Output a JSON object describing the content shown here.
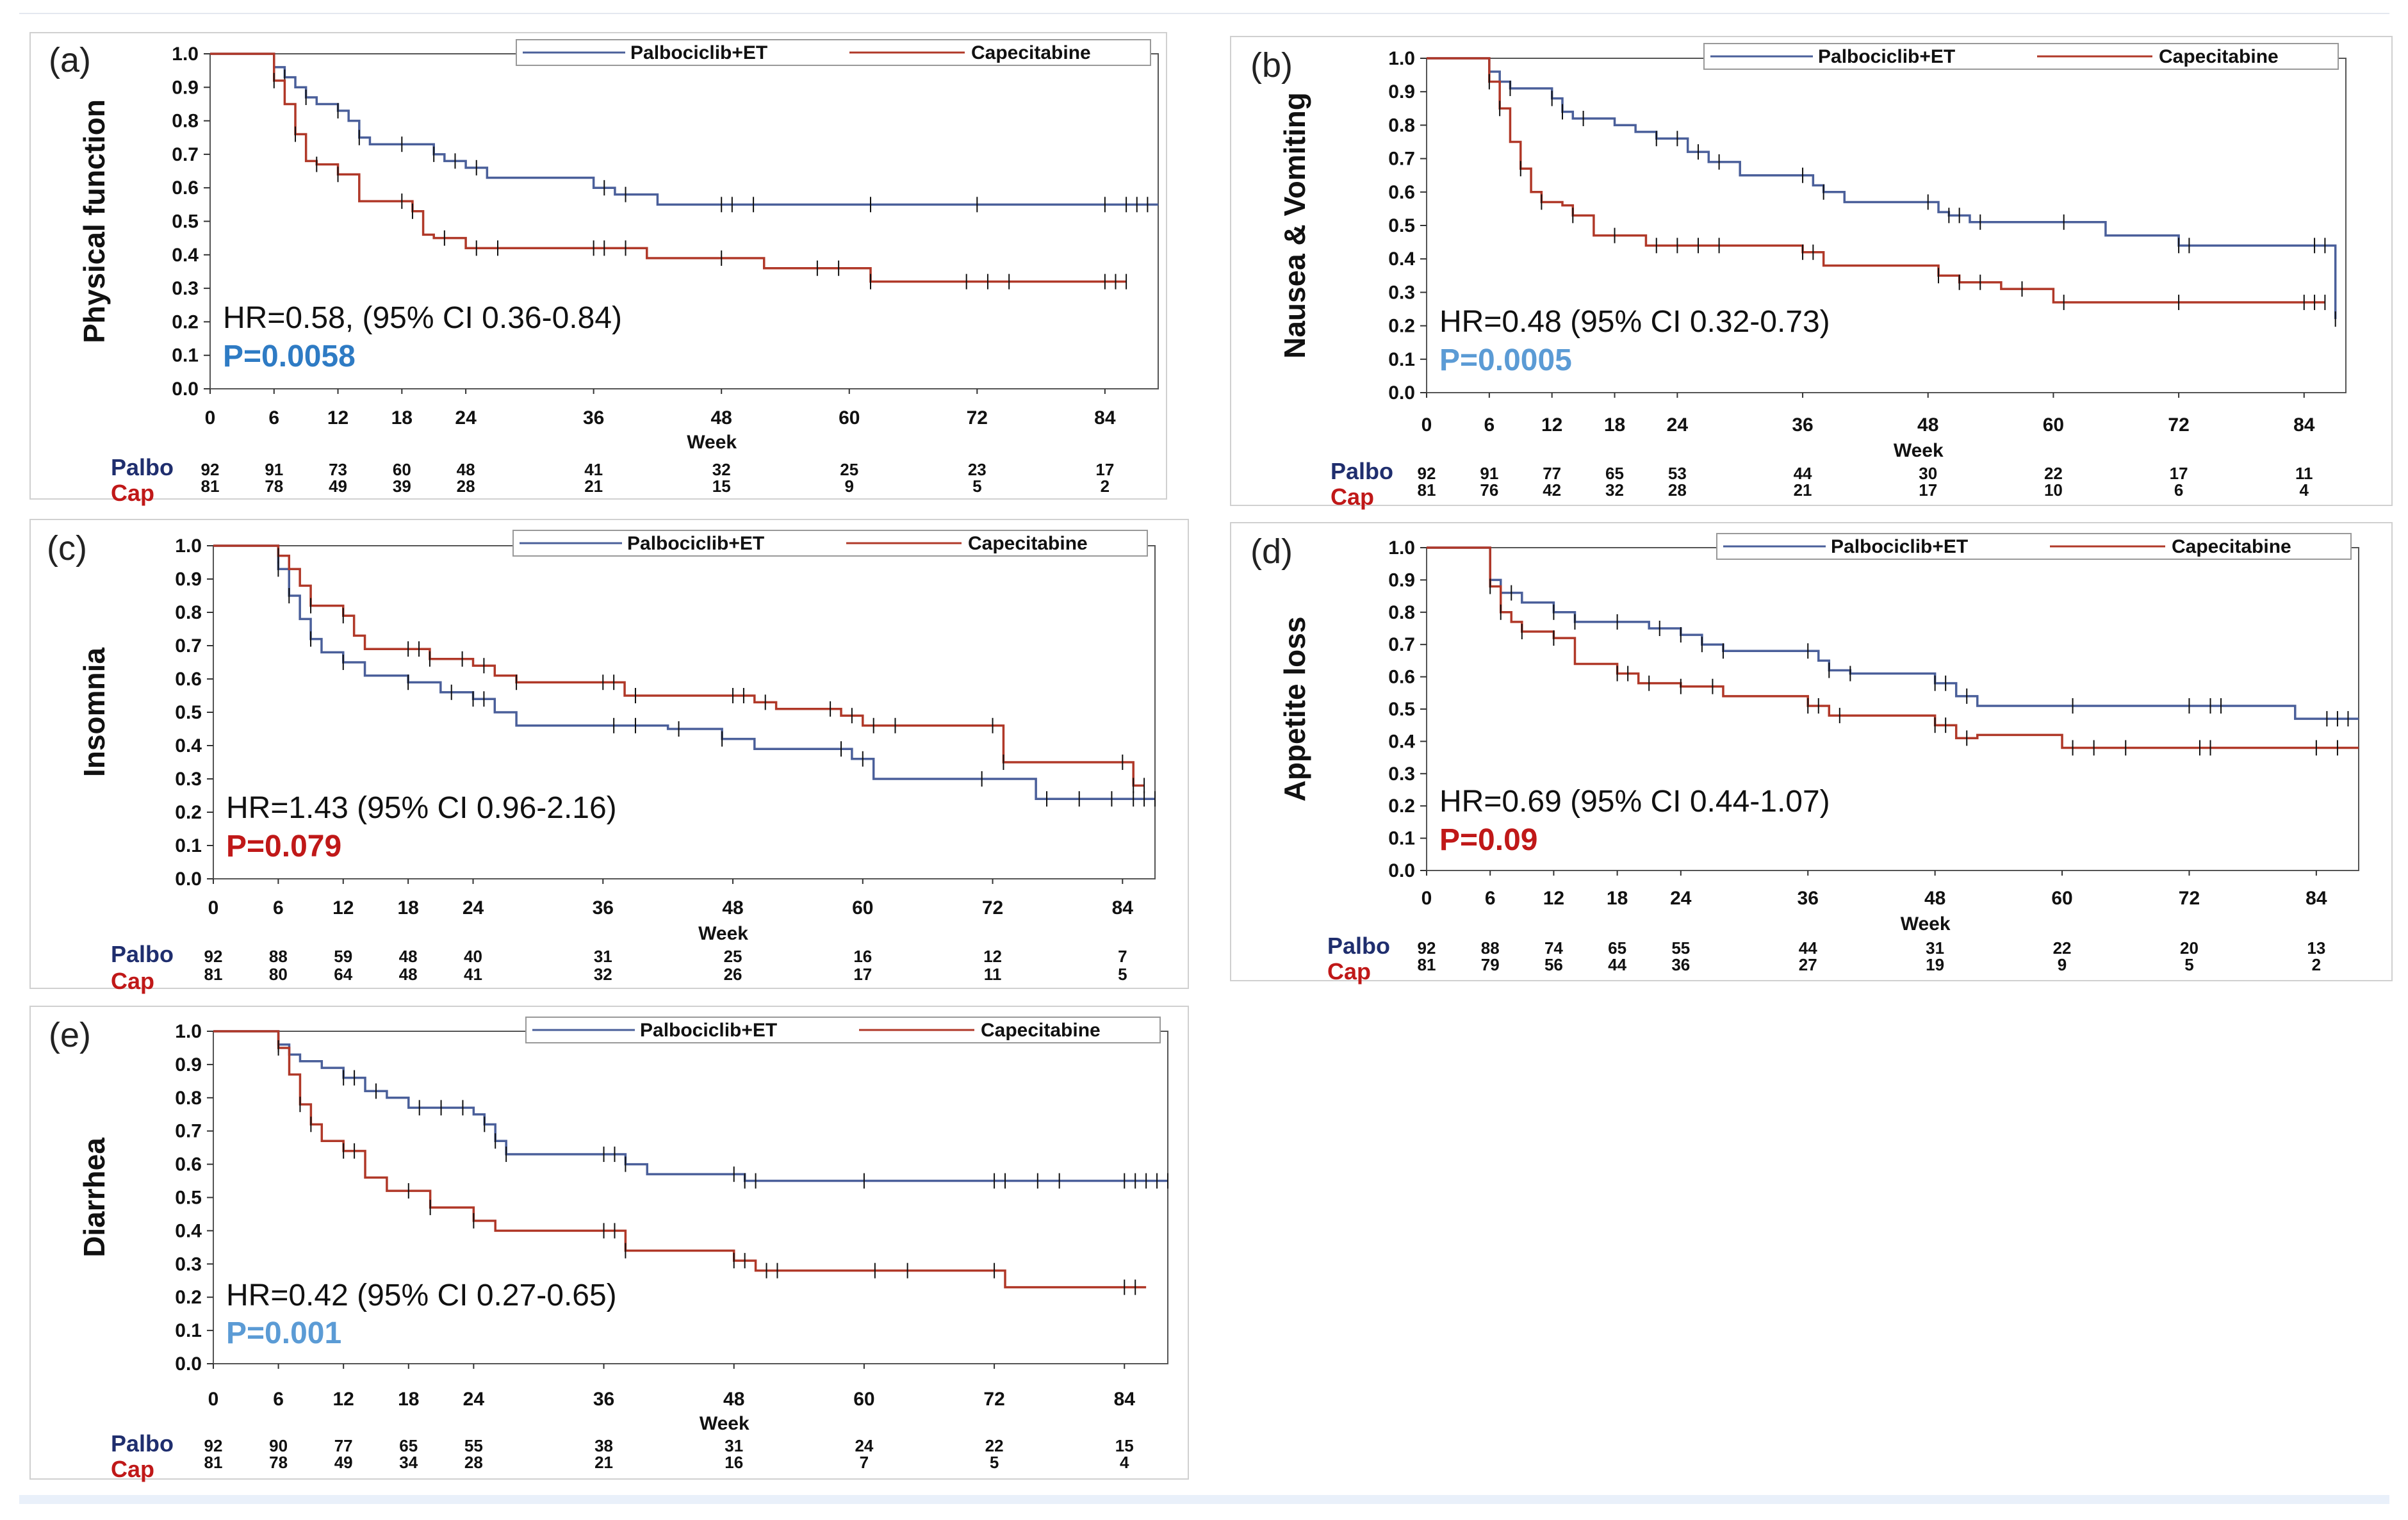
{
  "figure": {
    "x_label": "Week",
    "colors": {
      "palbo": "#4a5f9a",
      "cap": "#b03828",
      "palbo_label": "#1f2e6e",
      "cap_label": "#c01818",
      "p_blue": "#2e7bc4",
      "p_lightblue": "#5b9bd5",
      "p_red": "#c01818"
    }
  },
  "chart_data": [
    {
      "id": "a",
      "type": "line",
      "panel_label": "(a)",
      "ylabel": "Physical function",
      "legend": [
        "Palbociclib+ET",
        "Capecitabine"
      ],
      "x_ticks": [
        "0",
        "6",
        "12",
        "18",
        "24",
        "36",
        "48",
        "60",
        "72",
        "84"
      ],
      "y_ticks": [
        "1.0",
        "0.9",
        "0.8",
        "0.7",
        "0.6",
        "0.5",
        "0.4",
        "0.3",
        "0.2",
        "0.1",
        "0.0"
      ],
      "xlim": [
        0,
        89
      ],
      "ylim": [
        0,
        1
      ],
      "hr_text": "HR=0.58,  (95% CI 0.36-0.84)",
      "p_text": "P=0.0058",
      "p_color": "#2e7bc4",
      "risk_labels": [
        "Palbo",
        "Cap"
      ],
      "risk_weeks": [
        0,
        6,
        12,
        18,
        24,
        36,
        48,
        60,
        72,
        84
      ],
      "risk_palbo": [
        "92",
        "91",
        "73",
        "60",
        "48",
        "41",
        "32",
        "25",
        "23",
        "17"
      ],
      "risk_cap": [
        "81",
        "78",
        "49",
        "39",
        "28",
        "21",
        "15",
        "9",
        "5",
        "2"
      ],
      "series": [
        {
          "name": "Palbociclib+ET",
          "x": [
            0,
            6,
            7,
            8,
            9,
            10,
            12,
            13,
            14,
            15,
            18,
            21,
            22,
            24,
            26,
            36,
            38,
            42,
            48,
            60,
            72,
            80,
            89
          ],
          "y": [
            1.0,
            0.96,
            0.93,
            0.9,
            0.87,
            0.85,
            0.83,
            0.8,
            0.75,
            0.73,
            0.73,
            0.7,
            0.68,
            0.66,
            0.63,
            0.6,
            0.58,
            0.55,
            0.55,
            0.55,
            0.55,
            0.55,
            0.55
          ],
          "censor_x": [
            6,
            7,
            9,
            12,
            14,
            18,
            21,
            23,
            25,
            37,
            39,
            48,
            49,
            51,
            62,
            72,
            84,
            86,
            87,
            88
          ]
        },
        {
          "name": "Capecitabine",
          "x": [
            0,
            6,
            7,
            8,
            9,
            10,
            12,
            14,
            19,
            20,
            21,
            24,
            26,
            36,
            41,
            48,
            52,
            58,
            62,
            72,
            86
          ],
          "y": [
            1.0,
            0.92,
            0.85,
            0.76,
            0.68,
            0.67,
            0.64,
            0.56,
            0.53,
            0.46,
            0.45,
            0.42,
            0.42,
            0.42,
            0.39,
            0.39,
            0.36,
            0.36,
            0.32,
            0.32,
            0.32
          ],
          "censor_x": [
            6,
            8,
            10,
            12,
            18,
            19,
            22,
            25,
            27,
            36,
            37,
            39,
            48,
            57,
            59,
            62,
            71,
            73,
            75,
            84,
            85,
            86
          ]
        }
      ]
    },
    {
      "id": "b",
      "type": "line",
      "panel_label": "(b)",
      "ylabel": "Nausea & Vomiting",
      "legend": [
        "Palbociclib+ET",
        "Capecitabine"
      ],
      "x_ticks": [
        "0",
        "6",
        "12",
        "18",
        "24",
        "36",
        "48",
        "60",
        "72",
        "84"
      ],
      "y_ticks": [
        "1.0",
        "0.9",
        "0.8",
        "0.7",
        "0.6",
        "0.5",
        "0.4",
        "0.3",
        "0.2",
        "0.1",
        "0.0"
      ],
      "xlim": [
        0,
        88
      ],
      "ylim": [
        0,
        1
      ],
      "hr_text": "HR=0.48  (95% CI 0.32-0.73)",
      "p_text": "P=0.0005",
      "p_color": "#5b9bd5",
      "risk_labels": [
        "Palbo",
        "Cap"
      ],
      "risk_weeks": [
        0,
        6,
        12,
        18,
        24,
        36,
        48,
        60,
        72,
        84
      ],
      "risk_palbo": [
        "92",
        "91",
        "77",
        "65",
        "53",
        "44",
        "30",
        "22",
        "17",
        "11"
      ],
      "risk_cap": [
        "81",
        "76",
        "42",
        "32",
        "28",
        "21",
        "17",
        "10",
        "6",
        "4"
      ],
      "series": [
        {
          "name": "Palbociclib+ET",
          "x": [
            0,
            6,
            7,
            8,
            9,
            12,
            13,
            14,
            18,
            20,
            22,
            25,
            27,
            30,
            36,
            37,
            38,
            40,
            48,
            49,
            50,
            52,
            60,
            65,
            72,
            86,
            87
          ],
          "y": [
            1.0,
            0.96,
            0.93,
            0.91,
            0.91,
            0.88,
            0.84,
            0.82,
            0.8,
            0.78,
            0.76,
            0.72,
            0.69,
            0.65,
            0.65,
            0.62,
            0.6,
            0.57,
            0.57,
            0.54,
            0.53,
            0.51,
            0.51,
            0.47,
            0.44,
            0.44,
            0.22
          ],
          "censor_x": [
            6,
            8,
            12,
            13,
            15,
            22,
            24,
            26,
            28,
            36,
            38,
            48,
            50,
            51,
            53,
            61,
            72,
            73,
            85,
            86,
            87
          ]
        },
        {
          "name": "Capecitabine",
          "x": [
            0,
            6,
            7,
            8,
            9,
            10,
            11,
            13,
            14,
            16,
            21,
            24,
            36,
            38,
            48,
            49,
            51,
            55,
            60,
            72,
            86
          ],
          "y": [
            1.0,
            0.93,
            0.85,
            0.75,
            0.67,
            0.6,
            0.57,
            0.56,
            0.53,
            0.47,
            0.44,
            0.44,
            0.42,
            0.38,
            0.38,
            0.35,
            0.33,
            0.31,
            0.27,
            0.27,
            0.27
          ],
          "censor_x": [
            6,
            7,
            9,
            11,
            14,
            18,
            22,
            24,
            26,
            28,
            36,
            37,
            49,
            51,
            53,
            57,
            61,
            72,
            84,
            85,
            86
          ]
        }
      ]
    },
    {
      "id": "c",
      "type": "line",
      "panel_label": "(c)",
      "ylabel": "Insomnia",
      "legend": [
        "Palbociclib+ET",
        "Capecitabine"
      ],
      "x_ticks": [
        "0",
        "6",
        "12",
        "18",
        "24",
        "36",
        "48",
        "60",
        "72",
        "84"
      ],
      "y_ticks": [
        "1.0",
        "0.9",
        "0.8",
        "0.7",
        "0.6",
        "0.5",
        "0.4",
        "0.3",
        "0.2",
        "0.1",
        "0.0"
      ],
      "xlim": [
        0,
        87
      ],
      "ylim": [
        0,
        1
      ],
      "hr_text": "HR=1.43  (95% CI 0.96-2.16)",
      "p_text": "P=0.079",
      "p_color": "#c01818",
      "risk_labels": [
        "Palbo",
        "Cap"
      ],
      "risk_weeks": [
        0,
        6,
        12,
        18,
        24,
        36,
        48,
        60,
        72,
        84
      ],
      "risk_palbo": [
        "92",
        "88",
        "59",
        "48",
        "40",
        "31",
        "25",
        "16",
        "12",
        "7"
      ],
      "risk_cap": [
        "81",
        "80",
        "64",
        "48",
        "41",
        "32",
        "26",
        "17",
        "11",
        "5"
      ],
      "series": [
        {
          "name": "Palbociclib+ET",
          "x": [
            0,
            6,
            7,
            8,
            9,
            10,
            12,
            14,
            18,
            21,
            24,
            26,
            28,
            36,
            42,
            47,
            50,
            59,
            61,
            72,
            76,
            84,
            87
          ],
          "y": [
            1.0,
            0.93,
            0.85,
            0.78,
            0.72,
            0.68,
            0.65,
            0.61,
            0.59,
            0.56,
            0.54,
            0.5,
            0.46,
            0.46,
            0.45,
            0.42,
            0.39,
            0.36,
            0.3,
            0.3,
            0.24,
            0.24,
            0.24
          ],
          "censor_x": [
            6,
            7,
            9,
            12,
            18,
            22,
            24,
            25,
            37,
            39,
            43,
            47,
            58,
            60,
            71,
            77,
            80,
            83,
            85,
            86,
            87
          ]
        },
        {
          "name": "Capecitabine",
          "x": [
            0,
            6,
            7,
            8,
            9,
            12,
            13,
            14,
            18,
            20,
            24,
            26,
            28,
            36,
            38,
            48,
            50,
            52,
            58,
            60,
            72,
            73,
            83,
            85,
            86
          ],
          "y": [
            1.0,
            0.97,
            0.93,
            0.88,
            0.82,
            0.79,
            0.73,
            0.69,
            0.69,
            0.66,
            0.64,
            0.61,
            0.59,
            0.59,
            0.55,
            0.55,
            0.53,
            0.51,
            0.49,
            0.46,
            0.46,
            0.35,
            0.35,
            0.28,
            0.28
          ],
          "censor_x": [
            6,
            9,
            12,
            18,
            19,
            20,
            23,
            25,
            28,
            36,
            37,
            39,
            48,
            49,
            51,
            57,
            59,
            61,
            63,
            72,
            73,
            84,
            85,
            86
          ]
        }
      ]
    },
    {
      "id": "d",
      "type": "line",
      "panel_label": "(d)",
      "ylabel": "Appetite loss",
      "legend": [
        "Palbociclib+ET",
        "Capecitabine"
      ],
      "x_ticks": [
        "0",
        "6",
        "12",
        "18",
        "24",
        "36",
        "48",
        "60",
        "72",
        "84"
      ],
      "y_ticks": [
        "1.0",
        "0.9",
        "0.8",
        "0.7",
        "0.6",
        "0.5",
        "0.4",
        "0.3",
        "0.2",
        "0.1",
        "0.0"
      ],
      "xlim": [
        0,
        88
      ],
      "ylim": [
        0,
        1
      ],
      "hr_text": "HR=0.69  (95% CI 0.44-1.07)",
      "p_text": "P=0.09",
      "p_color": "#c01818",
      "risk_labels": [
        "Palbo",
        "Cap"
      ],
      "risk_weeks": [
        0,
        6,
        12,
        18,
        24,
        36,
        48,
        60,
        72,
        84
      ],
      "risk_palbo": [
        "92",
        "88",
        "74",
        "65",
        "55",
        "44",
        "31",
        "22",
        "20",
        "13"
      ],
      "risk_cap": [
        "81",
        "79",
        "56",
        "44",
        "36",
        "27",
        "19",
        "9",
        "5",
        "2"
      ],
      "series": [
        {
          "name": "Palbociclib+ET",
          "x": [
            0,
            6,
            7,
            9,
            12,
            14,
            18,
            21,
            24,
            26,
            28,
            36,
            37,
            38,
            40,
            48,
            50,
            52,
            60,
            80,
            82,
            88
          ],
          "y": [
            1.0,
            0.9,
            0.86,
            0.83,
            0.8,
            0.77,
            0.77,
            0.75,
            0.73,
            0.7,
            0.68,
            0.68,
            0.65,
            0.62,
            0.61,
            0.58,
            0.54,
            0.51,
            0.51,
            0.51,
            0.47,
            0.47
          ],
          "censor_x": [
            6,
            8,
            12,
            14,
            18,
            22,
            24,
            26,
            28,
            36,
            38,
            40,
            48,
            49,
            51,
            61,
            72,
            74,
            75,
            85,
            86,
            87
          ]
        },
        {
          "name": "Capecitabine",
          "x": [
            0,
            6,
            7,
            8,
            9,
            12,
            14,
            18,
            20,
            24,
            28,
            36,
            38,
            48,
            50,
            52,
            60,
            88
          ],
          "y": [
            1.0,
            0.88,
            0.8,
            0.77,
            0.74,
            0.72,
            0.64,
            0.61,
            0.58,
            0.57,
            0.54,
            0.51,
            0.48,
            0.45,
            0.41,
            0.42,
            0.38,
            0.38
          ],
          "censor_x": [
            6,
            7,
            9,
            12,
            18,
            19,
            21,
            24,
            27,
            36,
            37,
            39,
            48,
            49,
            51,
            61,
            63,
            66,
            73,
            74,
            84,
            86
          ]
        }
      ]
    },
    {
      "id": "e",
      "type": "line",
      "panel_label": "(e)",
      "ylabel": "Diarrhea",
      "legend": [
        "Palbociclib+ET",
        "Capecitabine"
      ],
      "x_ticks": [
        "0",
        "6",
        "12",
        "18",
        "24",
        "36",
        "48",
        "60",
        "72",
        "84"
      ],
      "y_ticks": [
        "1.0",
        "0.9",
        "0.8",
        "0.7",
        "0.6",
        "0.5",
        "0.4",
        "0.3",
        "0.2",
        "0.1",
        "0.0"
      ],
      "xlim": [
        0,
        88
      ],
      "ylim": [
        0,
        1
      ],
      "hr_text": "HR=0.42  (95% CI 0.27-0.65)",
      "p_text": "P=0.001",
      "p_color": "#5b9bd5",
      "risk_labels": [
        "Palbo",
        "Cap"
      ],
      "risk_weeks": [
        0,
        6,
        12,
        18,
        24,
        36,
        48,
        60,
        72,
        84
      ],
      "risk_palbo": [
        "92",
        "90",
        "77",
        "65",
        "55",
        "38",
        "31",
        "24",
        "22",
        "15"
      ],
      "risk_cap": [
        "81",
        "78",
        "49",
        "34",
        "28",
        "21",
        "16",
        "7",
        "5",
        "4"
      ],
      "series": [
        {
          "name": "Palbociclib+ET",
          "x": [
            0,
            6,
            7,
            8,
            10,
            12,
            14,
            16,
            18,
            22,
            24,
            25,
            26,
            27,
            36,
            38,
            40,
            48,
            49,
            88
          ],
          "y": [
            1.0,
            0.96,
            0.93,
            0.91,
            0.89,
            0.86,
            0.82,
            0.8,
            0.77,
            0.77,
            0.75,
            0.72,
            0.67,
            0.63,
            0.63,
            0.6,
            0.57,
            0.57,
            0.55,
            0.55
          ],
          "censor_x": [
            6,
            7,
            12,
            13,
            15,
            19,
            21,
            23,
            25,
            26,
            27,
            36,
            37,
            38,
            48,
            49,
            50,
            60,
            72,
            73,
            76,
            78,
            84,
            85,
            86,
            87,
            88
          ]
        },
        {
          "name": "Capecitabine",
          "x": [
            0,
            6,
            7,
            8,
            9,
            10,
            12,
            14,
            16,
            20,
            24,
            26,
            36,
            38,
            48,
            50,
            52,
            72,
            73,
            86
          ],
          "y": [
            1.0,
            0.95,
            0.87,
            0.78,
            0.72,
            0.67,
            0.64,
            0.56,
            0.52,
            0.47,
            0.43,
            0.4,
            0.4,
            0.34,
            0.31,
            0.28,
            0.28,
            0.28,
            0.23,
            0.23
          ],
          "censor_x": [
            6,
            8,
            9,
            12,
            13,
            18,
            20,
            24,
            36,
            37,
            38,
            48,
            49,
            51,
            52,
            61,
            64,
            72,
            84,
            85
          ]
        }
      ]
    }
  ]
}
